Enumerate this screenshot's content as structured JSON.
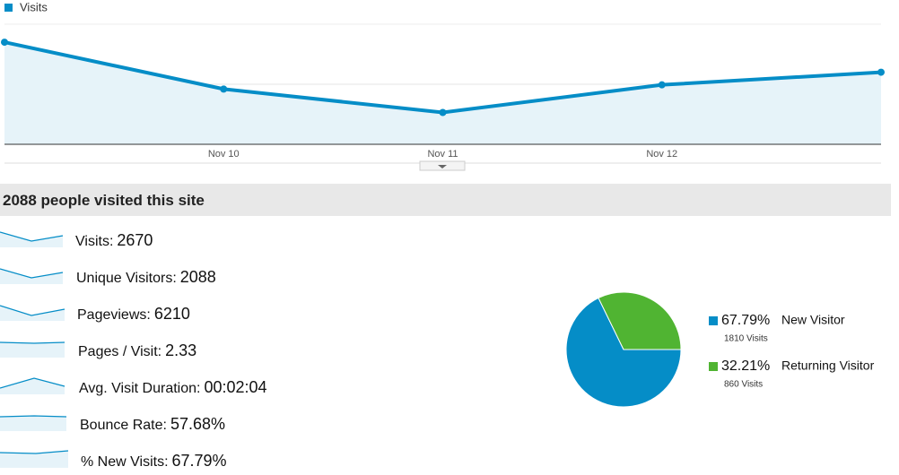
{
  "chart_data": [
    {
      "type": "line",
      "legend": "Visits",
      "color": "#058dc7",
      "fill": "#e6f3f9",
      "categories": [
        null,
        "Nov 10",
        "Nov 11",
        "Nov 12",
        null
      ],
      "values": [
        850,
        460,
        265,
        495,
        600
      ],
      "ylim": [
        0,
        1000
      ],
      "yticks": [
        500
      ],
      "grid": true
    },
    {
      "type": "pie",
      "categories": [
        "New Visitor",
        "Returning Visitor"
      ],
      "values": [
        67.79,
        32.21
      ],
      "value_labels": [
        "67.79%",
        "32.21%"
      ],
      "colors": [
        "#058dc7",
        "#50b432"
      ],
      "visits": [
        "1810 Visits",
        "860 Visits"
      ]
    }
  ],
  "summary": {
    "title": "2088 people visited this site",
    "metrics": [
      {
        "label": "Visits:",
        "value": "2670"
      },
      {
        "label": "Unique Visitors:",
        "value": "2088"
      },
      {
        "label": "Pageviews:",
        "value": "6210"
      },
      {
        "label": "Pages / Visit:",
        "value": "2.33"
      },
      {
        "label": "Avg. Visit Duration:",
        "value": "00:02:04"
      },
      {
        "label": "Bounce Rate:",
        "value": "57.68%"
      },
      {
        "label": "% New Visits:",
        "value": "67.79%"
      }
    ]
  }
}
